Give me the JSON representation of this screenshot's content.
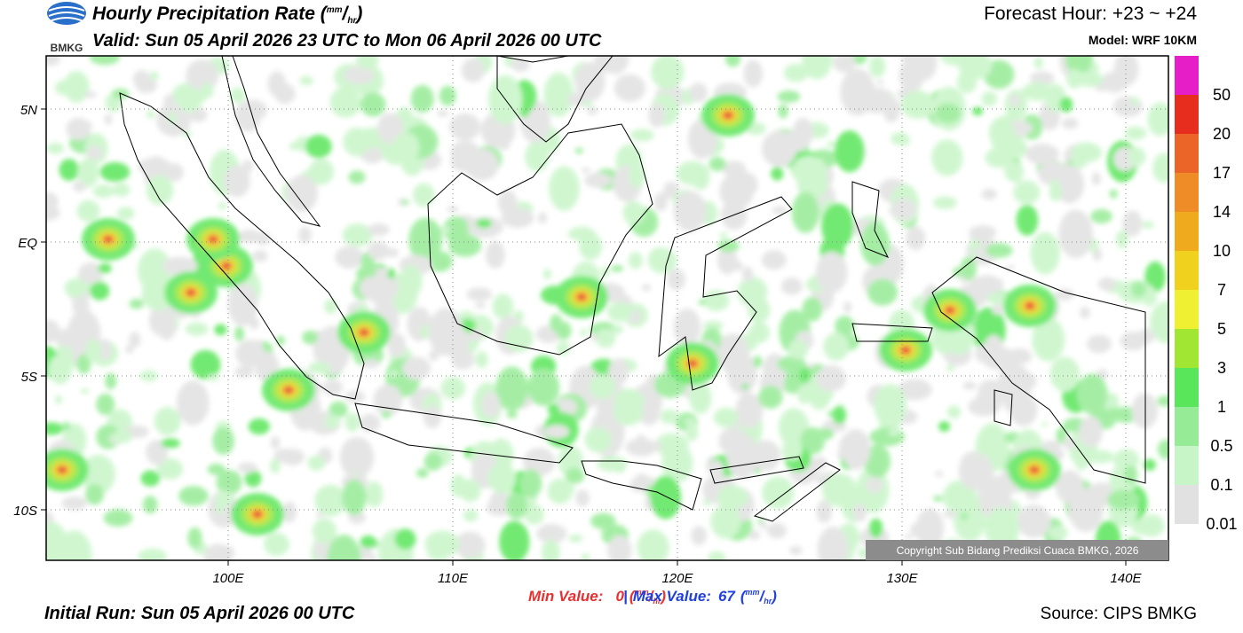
{
  "header": {
    "logo": "BMKG",
    "title": "Hourly Precipitation Rate",
    "title_unit": [
      "(",
      "mm",
      "/",
      "hr",
      ")"
    ],
    "valid": "Valid: Sun 05 April 2026 23 UTC to Mon 06 April 2026 00 UTC",
    "forecast_hour": "Forecast Hour: +23 ~ +24",
    "model": "Model: WRF 10KM"
  },
  "map": {
    "lat_labels": [
      "5N",
      "EQ",
      "5S",
      "10S"
    ],
    "lon_labels": [
      "100E",
      "110E",
      "120E",
      "130E",
      "140E"
    ],
    "copyright": "Copyright Sub Bidang Prediksi Cuaca BMKG, 2026"
  },
  "colorbar": {
    "labels": [
      "50",
      "20",
      "17",
      "14",
      "10",
      "7",
      "5",
      "3",
      "1",
      "0.5",
      "0.1",
      "0.01"
    ],
    "colors": [
      "#e61ec8",
      "#e62d1e",
      "#eb6428",
      "#f08c28",
      "#f0aa1e",
      "#f0d21e",
      "#f0f032",
      "#a0e632",
      "#5ae65a",
      "#96eb96",
      "#c8f5c8",
      "#e1e1e1"
    ]
  },
  "footer": {
    "min_label": "Min Value:",
    "min_value": "0",
    "max_label": "Max Value:",
    "max_value": "67",
    "separator": "|",
    "unit": [
      "(",
      "mm",
      "/",
      "hr",
      ")"
    ],
    "initial_run": "Initial Run: Sun 05 April 2026 00 UTC",
    "source": "Source: CIPS BMKG"
  }
}
